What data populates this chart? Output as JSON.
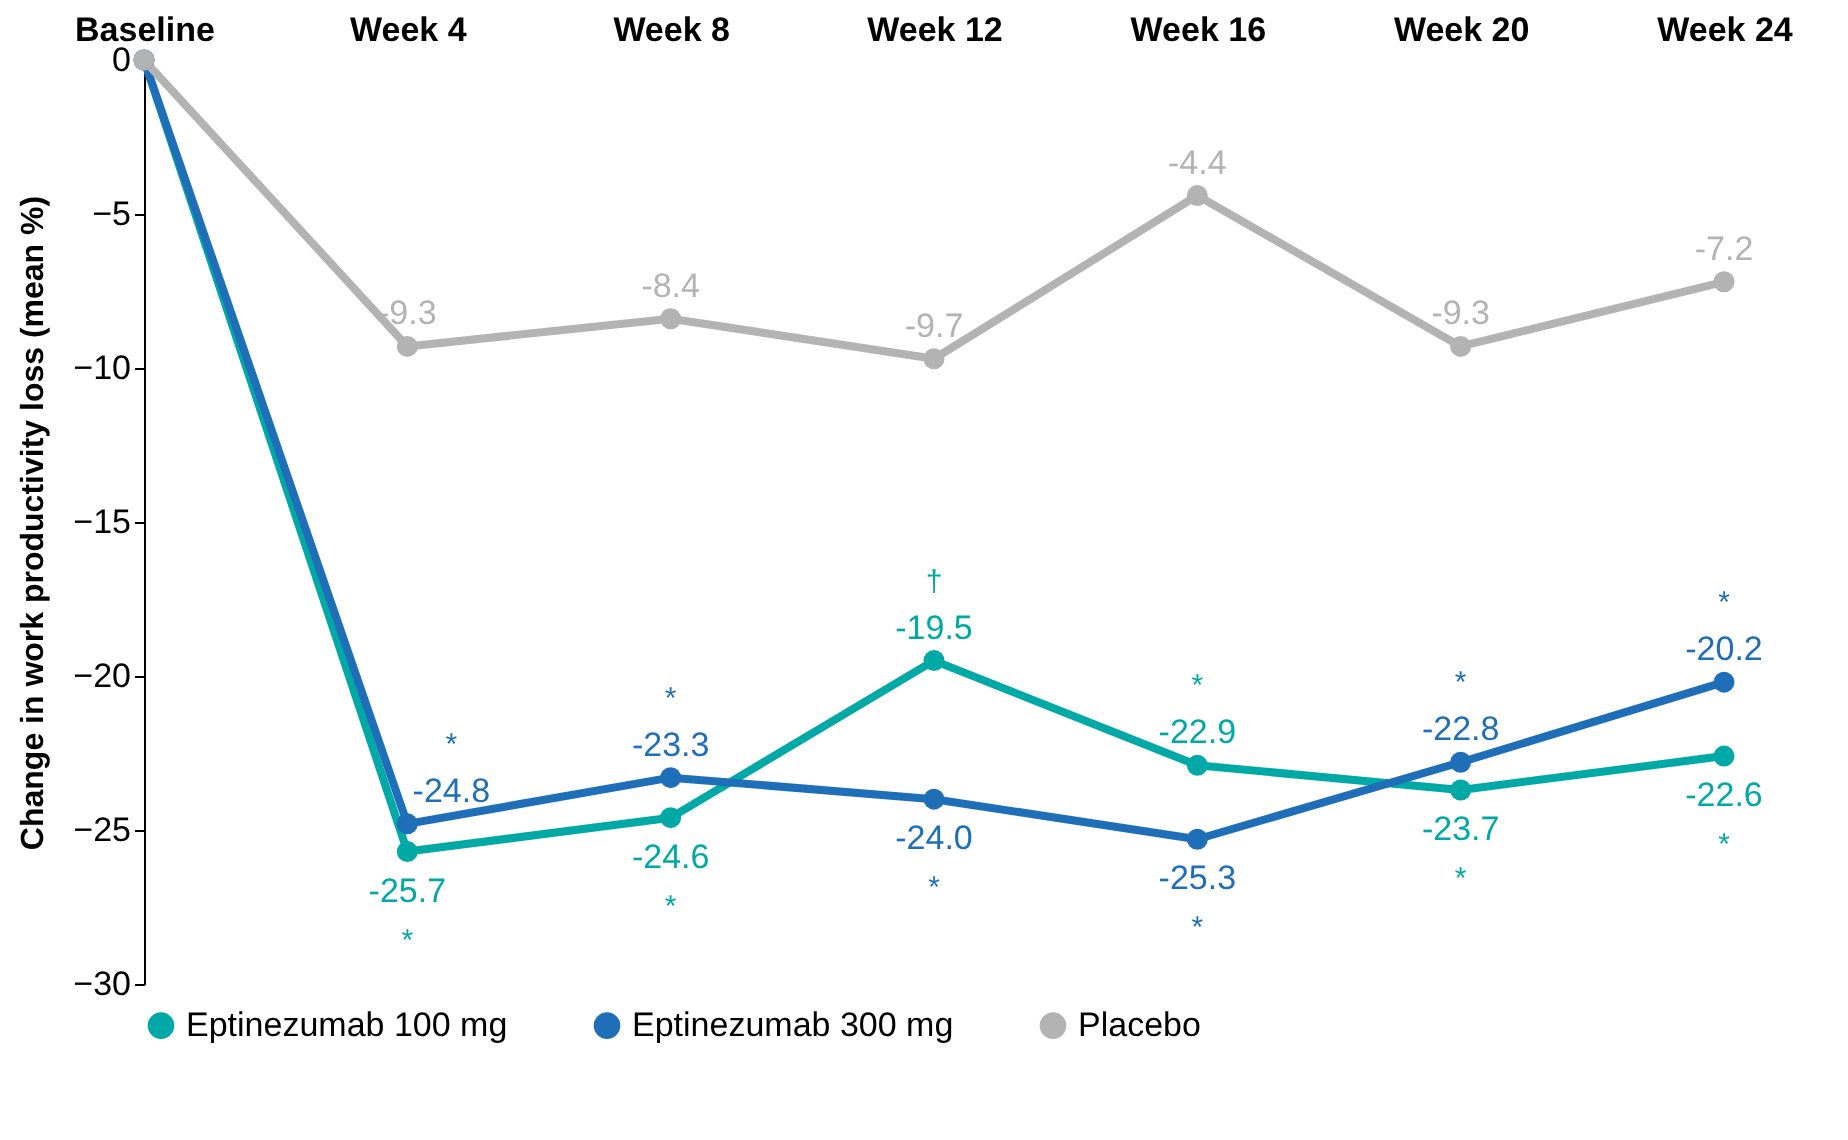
{
  "chart_data": {
    "type": "line",
    "ylabel": "Change in work productivity loss (mean %)",
    "categories": [
      "Baseline",
      "Week 4",
      "Week 8",
      "Week 12",
      "Week 16",
      "Week 20",
      "Week 24"
    ],
    "ylim": [
      -30,
      0
    ],
    "yticks": [
      0,
      -5,
      -10,
      -15,
      -20,
      -25,
      -30
    ],
    "grid": false,
    "legend": "bottom",
    "marker": "circle",
    "line_style": "solid",
    "series": [
      {
        "name": "Eptinezumab 100 mg",
        "color": "#00a9a5",
        "values": [
          0,
          -25.7,
          -24.6,
          -19.5,
          -22.9,
          -23.7,
          -22.6
        ],
        "value_labels": [
          null,
          "-25.7",
          "-24.6",
          "-19.5",
          "-22.9",
          "-23.7",
          "-22.6"
        ]
      },
      {
        "name": "Eptinezumab 300 mg",
        "color": "#1f6fb8",
        "values": [
          0,
          -24.8,
          -23.3,
          -24.0,
          -25.3,
          -22.8,
          -20.2
        ],
        "value_labels": [
          null,
          "-24.8",
          "-23.3",
          "-24.0",
          "-25.3",
          "-22.8",
          "-20.2"
        ]
      },
      {
        "name": "Placebo",
        "color": "#b3b3b3",
        "values": [
          0,
          -9.3,
          -8.4,
          -9.7,
          -4.4,
          -9.3,
          -7.2
        ],
        "value_labels": [
          null,
          "-9.3",
          "-8.4",
          "-9.7",
          "-4.4",
          "-9.3",
          "-7.2"
        ]
      }
    ],
    "annotations": [
      {
        "text": "*",
        "x": "Week 4",
        "y": -25.7
      },
      {
        "text": "*",
        "x": "Week 4",
        "y": -24.8
      },
      {
        "text": "*",
        "x": "Week 8",
        "y": -24.6
      },
      {
        "text": "*",
        "x": "Week 8",
        "y": -23.3
      },
      {
        "text": "†",
        "x": "Week 12",
        "y": -19.5
      },
      {
        "text": "*",
        "x": "Week 12",
        "y": -24.0
      },
      {
        "text": "*",
        "x": "Week 16",
        "y": -22.9
      },
      {
        "text": "*",
        "x": "Week 16",
        "y": -25.3
      },
      {
        "text": "*",
        "x": "Week 20",
        "y": -23.7
      },
      {
        "text": "*",
        "x": "Week 20",
        "y": -22.8
      },
      {
        "text": "*",
        "x": "Week 24",
        "y": -22.6
      },
      {
        "text": "*",
        "x": "Week 24",
        "y": -20.2
      }
    ]
  }
}
